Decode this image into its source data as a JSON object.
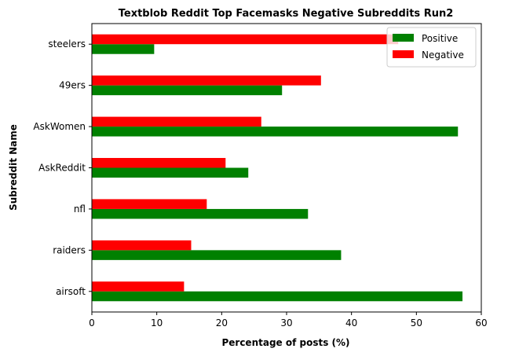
{
  "chart_data": {
    "type": "bar",
    "orientation": "horizontal",
    "title": "Textblob Reddit Top Facemasks Negative Subreddits Run2",
    "xlabel": "Percentage of posts (%)",
    "ylabel": "Subreddit Name",
    "xlim": [
      0,
      60
    ],
    "xticks": [
      0,
      10,
      20,
      30,
      40,
      50,
      60
    ],
    "grid": false,
    "legend_position": "top-right",
    "categories": [
      "airsoft",
      "raiders",
      "nfl",
      "AskReddit",
      "AskWomen",
      "49ers",
      "steelers"
    ],
    "series": [
      {
        "name": "Positive",
        "color": "#008000",
        "values": [
          57.1,
          38.4,
          33.3,
          24.1,
          56.4,
          29.3,
          9.6
        ]
      },
      {
        "name": "Negative",
        "color": "#ff0000",
        "values": [
          14.2,
          15.3,
          17.7,
          20.6,
          26.1,
          35.3,
          47.2
        ]
      }
    ]
  }
}
